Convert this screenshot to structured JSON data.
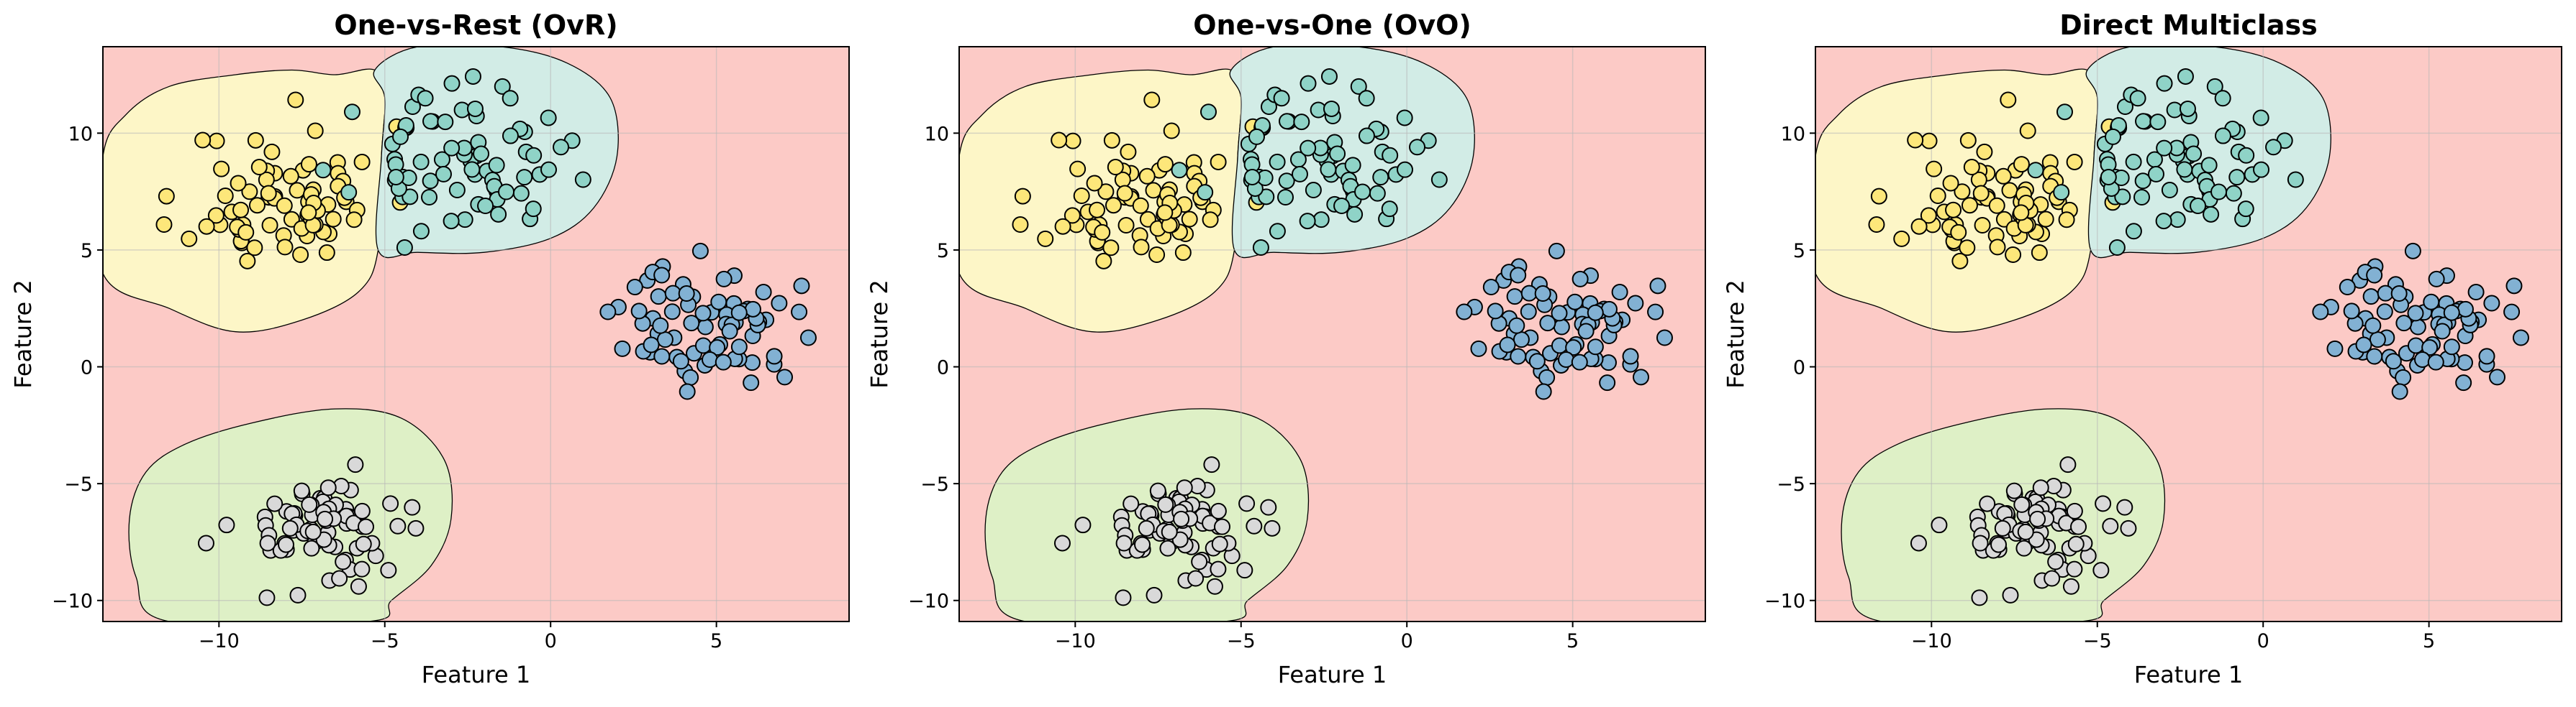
{
  "colors": {
    "background_region": "#fccac6",
    "region_yellow": "#fdf6c7",
    "region_teal": "#d2ece6",
    "region_green": "#def0c6",
    "point_yellow": "#fde77a",
    "point_teal": "#8fd3c7",
    "point_blue": "#82b1d3",
    "point_grey": "#d9d9d9",
    "edge": "#000000"
  },
  "chart_data": [
    {
      "type": "scatter",
      "title": "One-vs-Rest (OvR)",
      "xlabel": "Feature 1",
      "ylabel": "Feature 2",
      "xlim": [
        -13.5,
        9
      ],
      "ylim": [
        -10.9,
        13.7
      ],
      "xticks": [
        -10,
        -5,
        0,
        5
      ],
      "yticks": [
        -10,
        -5,
        0,
        5,
        10
      ],
      "xtick_labels": [
        "−10",
        "−5",
        "0",
        "5"
      ],
      "ytick_labels": [
        "−10",
        "−5",
        "0",
        "5",
        "10"
      ],
      "grid": true
    },
    {
      "type": "scatter",
      "title": "One-vs-One (OvO)",
      "xlabel": "Feature 1",
      "ylabel": "Feature 2",
      "xlim": [
        -13.5,
        9
      ],
      "ylim": [
        -10.9,
        13.7
      ],
      "xticks": [
        -10,
        -5,
        0,
        5
      ],
      "yticks": [
        -10,
        -5,
        0,
        5,
        10
      ],
      "xtick_labels": [
        "−10",
        "−5",
        "0",
        "5"
      ],
      "ytick_labels": [
        "−10",
        "−5",
        "0",
        "5",
        "10"
      ],
      "grid": true
    },
    {
      "type": "scatter",
      "title": "Direct Multiclass",
      "xlabel": "Feature 1",
      "ylabel": "Feature 2",
      "xlim": [
        -13.5,
        9
      ],
      "ylim": [
        -10.9,
        13.7
      ],
      "xticks": [
        -10,
        -5,
        0,
        5
      ],
      "yticks": [
        -10,
        -5,
        0,
        5,
        10
      ],
      "xtick_labels": [
        "−10",
        "−5",
        "0",
        "5"
      ],
      "ytick_labels": [
        "−10",
        "−5",
        "0",
        "5",
        "10"
      ],
      "grid": true
    }
  ],
  "clusters": [
    {
      "color": "yellow",
      "center": [
        -8.0,
        7.2
      ],
      "spread": [
        1.45,
        1.55
      ],
      "count": 75,
      "seed": 11
    },
    {
      "color": "teal",
      "center": [
        -2.8,
        8.8
      ],
      "spread": [
        1.5,
        1.45
      ],
      "count": 75,
      "seed": 23
    },
    {
      "color": "blue",
      "center": [
        4.8,
        1.8
      ],
      "spread": [
        1.3,
        1.3
      ],
      "count": 75,
      "seed": 37
    },
    {
      "color": "grey",
      "center": [
        -6.8,
        -6.9
      ],
      "spread": [
        1.35,
        1.25
      ],
      "count": 75,
      "seed": 53
    }
  ],
  "regions": [
    {
      "color": "yellow",
      "boundary": [
        [
          -13.5,
          9.0
        ],
        [
          -12.8,
          10.8
        ],
        [
          -11.5,
          12.0
        ],
        [
          -9.5,
          12.5
        ],
        [
          -7.8,
          12.7
        ],
        [
          -6.5,
          12.5
        ],
        [
          -5.3,
          12.7
        ],
        [
          -5.0,
          11.5
        ],
        [
          -5.1,
          9.0
        ],
        [
          -5.2,
          5.0
        ],
        [
          -5.8,
          3.2
        ],
        [
          -7.5,
          2.0
        ],
        [
          -9.5,
          1.5
        ],
        [
          -11.5,
          2.5
        ],
        [
          -13.5,
          4.0
        ]
      ]
    },
    {
      "color": "teal",
      "boundary": [
        [
          -5.3,
          12.7
        ],
        [
          -4.0,
          13.7
        ],
        [
          -1.5,
          13.7
        ],
        [
          0.5,
          13.0
        ],
        [
          1.8,
          11.5
        ],
        [
          2.0,
          9.0
        ],
        [
          1.3,
          6.8
        ],
        [
          0.0,
          5.5
        ],
        [
          -2.0,
          4.9
        ],
        [
          -4.0,
          4.9
        ],
        [
          -5.2,
          5.0
        ],
        [
          -5.1,
          9.0
        ],
        [
          -5.0,
          11.5
        ]
      ]
    },
    {
      "color": "green",
      "boundary": [
        [
          -11.5,
          -10.9
        ],
        [
          -12.5,
          -9.0
        ],
        [
          -12.7,
          -6.5
        ],
        [
          -12.2,
          -4.5
        ],
        [
          -11.0,
          -3.3
        ],
        [
          -9.0,
          -2.4
        ],
        [
          -6.5,
          -1.8
        ],
        [
          -4.5,
          -2.2
        ],
        [
          -3.2,
          -4.0
        ],
        [
          -3.0,
          -6.5
        ],
        [
          -3.6,
          -8.5
        ],
        [
          -4.8,
          -10.0
        ],
        [
          -5.5,
          -10.9
        ]
      ]
    }
  ]
}
